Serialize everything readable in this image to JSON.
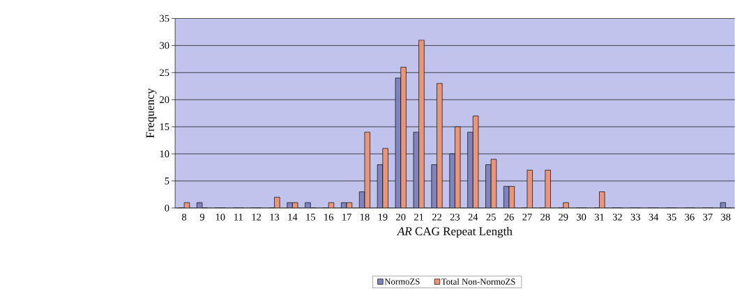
{
  "chart_data": {
    "type": "bar",
    "xlabel": "*AR* CAG Repeat Length",
    "ylabel": "Frequency",
    "categories": [
      "8",
      "9",
      "10",
      "11",
      "12",
      "13",
      "14",
      "15",
      "16",
      "17",
      "18",
      "19",
      "20",
      "21",
      "22",
      "23",
      "24",
      "25",
      "26",
      "27",
      "28",
      "29",
      "30",
      "31",
      "32",
      "33",
      "34",
      "35",
      "36",
      "37",
      "38"
    ],
    "series": [
      {
        "name": "NormoZS",
        "color": "#8084bc",
        "values": [
          0,
          1,
          0,
          0,
          0,
          0,
          1,
          1,
          0,
          1,
          3,
          8,
          24,
          14,
          8,
          10,
          14,
          8,
          4,
          0,
          0,
          0,
          0,
          0,
          0,
          0,
          0,
          0,
          0,
          0,
          1
        ]
      },
      {
        "name": "Total Non-NormoZS",
        "color": "#e8957a",
        "values": [
          1,
          0,
          0,
          0,
          0,
          2,
          1,
          0,
          1,
          1,
          14,
          11,
          26,
          31,
          23,
          15,
          17,
          9,
          4,
          7,
          7,
          1,
          0,
          3,
          0,
          0,
          0,
          0,
          0,
          0,
          0
        ]
      }
    ],
    "ylim": [
      0,
      35
    ],
    "yticks": [
      0,
      5,
      10,
      15,
      20,
      25,
      30,
      35
    ],
    "grid": "y",
    "legend": "bottom"
  }
}
